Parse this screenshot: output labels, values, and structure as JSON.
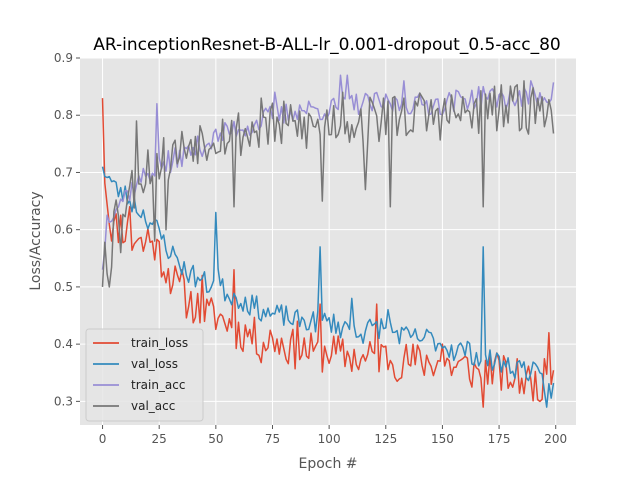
{
  "chart_data": {
    "type": "line",
    "title": "AR-inceptionResnet-B-ALL-lr_0.001-dropout_0.5-acc_80",
    "xlabel": "Epoch #",
    "ylabel": "Loss/Accuracy",
    "xlim": [
      -9.95,
      208.95
    ],
    "ylim": [
      0.2587,
      0.9
    ],
    "xticks": [
      0,
      25,
      50,
      75,
      100,
      125,
      150,
      175,
      200
    ],
    "yticks": [
      0.3,
      0.4,
      0.5,
      0.6,
      0.7,
      0.8,
      0.9
    ],
    "xtick_labels": [
      "0",
      "25",
      "50",
      "75",
      "100",
      "125",
      "150",
      "175",
      "200"
    ],
    "ytick_labels": [
      "0.3",
      "0.4",
      "0.5",
      "0.6",
      "0.7",
      "0.8",
      "0.9"
    ],
    "grid": true,
    "legend_position": "lower-left",
    "background": "#e5e5e5",
    "series": [
      {
        "name": "train_loss",
        "color": "#e24a33",
        "keypoints": [
          [
            0,
            0.83
          ],
          [
            1,
            0.7
          ],
          [
            2,
            0.66
          ],
          [
            3,
            0.62
          ],
          [
            5,
            0.6
          ],
          [
            8,
            0.61
          ],
          [
            10,
            0.6
          ],
          [
            13,
            0.58
          ],
          [
            15,
            0.59
          ],
          [
            18,
            0.57
          ],
          [
            20,
            0.59
          ],
          [
            22,
            0.58
          ],
          [
            25,
            0.56
          ],
          [
            27,
            0.54
          ],
          [
            30,
            0.52
          ],
          [
            33,
            0.5
          ],
          [
            36,
            0.48
          ],
          [
            40,
            0.47
          ],
          [
            43,
            0.46
          ],
          [
            47,
            0.45
          ],
          [
            50,
            0.45
          ],
          [
            55,
            0.44
          ],
          [
            60,
            0.42
          ],
          [
            65,
            0.42
          ],
          [
            70,
            0.4
          ],
          [
            75,
            0.41
          ],
          [
            80,
            0.4
          ],
          [
            85,
            0.39
          ],
          [
            90,
            0.39
          ],
          [
            95,
            0.38
          ],
          [
            100,
            0.39
          ],
          [
            105,
            0.38
          ],
          [
            110,
            0.38
          ],
          [
            115,
            0.37
          ],
          [
            120,
            0.38
          ],
          [
            125,
            0.38
          ],
          [
            130,
            0.37
          ],
          [
            135,
            0.37
          ],
          [
            140,
            0.37
          ],
          [
            145,
            0.37
          ],
          [
            150,
            0.37
          ],
          [
            155,
            0.36
          ],
          [
            160,
            0.36
          ],
          [
            165,
            0.35
          ],
          [
            170,
            0.36
          ],
          [
            175,
            0.35
          ],
          [
            180,
            0.34
          ],
          [
            185,
            0.34
          ],
          [
            190,
            0.33
          ],
          [
            195,
            0.34
          ],
          [
            199,
            0.36
          ]
        ],
        "noise": 0.035,
        "seed": 11,
        "spikes": [
          [
            12,
            0.64
          ],
          [
            22,
            0.58
          ],
          [
            35,
            0.53
          ],
          [
            44,
            0.52
          ],
          [
            58,
            0.53
          ],
          [
            86,
            0.44
          ],
          [
            96,
            0.47
          ],
          [
            121,
            0.47
          ],
          [
            150,
            0.4
          ],
          [
            168,
            0.29
          ],
          [
            182,
            0.34
          ],
          [
            193,
            0.3
          ],
          [
            197,
            0.42
          ]
        ]
      },
      {
        "name": "val_loss",
        "color": "#348abd",
        "keypoints": [
          [
            0,
            0.71
          ],
          [
            3,
            0.69
          ],
          [
            6,
            0.67
          ],
          [
            10,
            0.66
          ],
          [
            15,
            0.64
          ],
          [
            20,
            0.62
          ],
          [
            24,
            0.6
          ],
          [
            27,
            0.58
          ],
          [
            30,
            0.56
          ],
          [
            33,
            0.55
          ],
          [
            36,
            0.53
          ],
          [
            40,
            0.52
          ],
          [
            44,
            0.51
          ],
          [
            48,
            0.5
          ],
          [
            50,
            0.55
          ],
          [
            52,
            0.5
          ],
          [
            55,
            0.49
          ],
          [
            60,
            0.48
          ],
          [
            65,
            0.47
          ],
          [
            70,
            0.46
          ],
          [
            75,
            0.45
          ],
          [
            80,
            0.45
          ],
          [
            85,
            0.44
          ],
          [
            90,
            0.44
          ],
          [
            95,
            0.44
          ],
          [
            100,
            0.44
          ],
          [
            105,
            0.43
          ],
          [
            110,
            0.43
          ],
          [
            115,
            0.42
          ],
          [
            120,
            0.43
          ],
          [
            125,
            0.43
          ],
          [
            130,
            0.42
          ],
          [
            135,
            0.41
          ],
          [
            140,
            0.41
          ],
          [
            145,
            0.41
          ],
          [
            150,
            0.4
          ],
          [
            155,
            0.39
          ],
          [
            160,
            0.39
          ],
          [
            165,
            0.38
          ],
          [
            170,
            0.37
          ],
          [
            175,
            0.37
          ],
          [
            180,
            0.36
          ],
          [
            185,
            0.36
          ],
          [
            190,
            0.35
          ],
          [
            195,
            0.33
          ],
          [
            199,
            0.32
          ]
        ],
        "noise": 0.02,
        "seed": 23,
        "spikes": [
          [
            50,
            0.63
          ],
          [
            96,
            0.57
          ],
          [
            110,
            0.48
          ],
          [
            126,
            0.46
          ],
          [
            168,
            0.57
          ],
          [
            178,
            0.36
          ],
          [
            196,
            0.29
          ]
        ]
      },
      {
        "name": "train_acc",
        "color": "#988ed5",
        "keypoints": [
          [
            0,
            0.53
          ],
          [
            2,
            0.62
          ],
          [
            5,
            0.64
          ],
          [
            10,
            0.66
          ],
          [
            15,
            0.68
          ],
          [
            20,
            0.7
          ],
          [
            25,
            0.71
          ],
          [
            30,
            0.72
          ],
          [
            35,
            0.73
          ],
          [
            40,
            0.74
          ],
          [
            45,
            0.75
          ],
          [
            50,
            0.76
          ],
          [
            55,
            0.77
          ],
          [
            60,
            0.78
          ],
          [
            65,
            0.78
          ],
          [
            70,
            0.79
          ],
          [
            75,
            0.8
          ],
          [
            80,
            0.8
          ],
          [
            85,
            0.81
          ],
          [
            90,
            0.81
          ],
          [
            95,
            0.81
          ],
          [
            100,
            0.81
          ],
          [
            110,
            0.82
          ],
          [
            120,
            0.82
          ],
          [
            130,
            0.82
          ],
          [
            140,
            0.82
          ],
          [
            150,
            0.82
          ],
          [
            160,
            0.83
          ],
          [
            170,
            0.83
          ],
          [
            180,
            0.83
          ],
          [
            190,
            0.83
          ],
          [
            199,
            0.84
          ]
        ],
        "noise": 0.02,
        "seed": 37,
        "spikes": [
          [
            24,
            0.82
          ],
          [
            30,
            0.7
          ],
          [
            76,
            0.84
          ],
          [
            105,
            0.87
          ],
          [
            108,
            0.87
          ],
          [
            133,
            0.86
          ],
          [
            168,
            0.85
          ],
          [
            189,
            0.86
          ]
        ]
      },
      {
        "name": "val_acc",
        "color": "#777777",
        "keypoints": [
          [
            0,
            0.5
          ],
          [
            1,
            0.6
          ],
          [
            3,
            0.52
          ],
          [
            5,
            0.62
          ],
          [
            8,
            0.66
          ],
          [
            10,
            0.65
          ],
          [
            14,
            0.68
          ],
          [
            18,
            0.7
          ],
          [
            22,
            0.72
          ],
          [
            26,
            0.72
          ],
          [
            30,
            0.73
          ],
          [
            35,
            0.74
          ],
          [
            40,
            0.76
          ],
          [
            45,
            0.76
          ],
          [
            50,
            0.77
          ],
          [
            55,
            0.77
          ],
          [
            60,
            0.77
          ],
          [
            65,
            0.77
          ],
          [
            70,
            0.78
          ],
          [
            75,
            0.78
          ],
          [
            80,
            0.78
          ],
          [
            85,
            0.78
          ],
          [
            90,
            0.78
          ],
          [
            95,
            0.78
          ],
          [
            100,
            0.79
          ],
          [
            110,
            0.79
          ],
          [
            120,
            0.79
          ],
          [
            130,
            0.8
          ],
          [
            140,
            0.8
          ],
          [
            150,
            0.8
          ],
          [
            160,
            0.8
          ],
          [
            170,
            0.81
          ],
          [
            180,
            0.81
          ],
          [
            190,
            0.81
          ],
          [
            199,
            0.81
          ]
        ],
        "noise": 0.045,
        "seed": 53,
        "spikes": [
          [
            3,
            0.5
          ],
          [
            8,
            0.56
          ],
          [
            15,
            0.79
          ],
          [
            23,
            0.58
          ],
          [
            28,
            0.6
          ],
          [
            58,
            0.64
          ],
          [
            70,
            0.83
          ],
          [
            97,
            0.65
          ],
          [
            106,
            0.84
          ],
          [
            116,
            0.67
          ],
          [
            124,
            0.83
          ],
          [
            127,
            0.64
          ],
          [
            168,
            0.64
          ],
          [
            186,
            0.86
          ],
          [
            195,
            0.78
          ]
        ]
      }
    ]
  }
}
